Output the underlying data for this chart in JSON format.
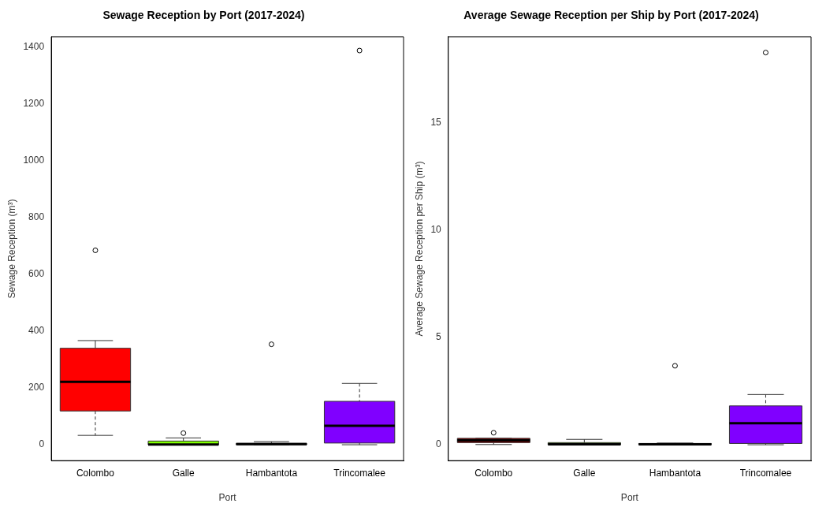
{
  "chart_data": [
    {
      "type": "box",
      "title": "Sewage Reception by Port (2017-2024)",
      "xlabel": "Port",
      "ylabel": "Sewage Reception (m³)",
      "categories": [
        "Colombo",
        "Galle",
        "Hambantota",
        "Trincomalee"
      ],
      "colors": [
        "#ff0000",
        "#7fff00",
        "#000000",
        "#8000ff"
      ],
      "boxes": [
        {
          "low": 33,
          "q1": 119,
          "median": 222,
          "q3": 340,
          "high": 367,
          "outliers": [
            685
          ]
        },
        {
          "low": 0,
          "q1": 0,
          "median": 1,
          "q3": 13,
          "high": 24,
          "outliers": [
            41
          ]
        },
        {
          "low": 0,
          "q1": 0,
          "median": 2,
          "q3": 5,
          "high": 11,
          "outliers": [
            354
          ]
        },
        {
          "low": 0,
          "q1": 6,
          "median": 67,
          "q3": 153,
          "high": 216,
          "outliers": [
            1389
          ]
        }
      ],
      "ylim": [
        -56,
        1437
      ],
      "yticks": [
        0,
        200,
        400,
        600,
        800,
        1000,
        1200,
        1400
      ],
      "grid": false,
      "legend": false
    },
    {
      "type": "box",
      "title": "Average Sewage Reception per Ship by Port (2017-2024)",
      "xlabel": "Port",
      "ylabel": "Average Sewage Reception per Ship (m³)",
      "categories": [
        "Colombo",
        "Galle",
        "Hambantota",
        "Trincomalee"
      ],
      "colors": [
        "#8b0000",
        "#7fff00",
        "#000000",
        "#8000ff"
      ],
      "boxes": [
        {
          "low": 0.01,
          "q1": 0.1,
          "median": 0.2,
          "q3": 0.3,
          "high": 0.3,
          "outliers": [
            0.56
          ]
        },
        {
          "low": 0,
          "q1": 0,
          "median": 0.02,
          "q3": 0.1,
          "high": 0.25
        },
        {
          "low": 0,
          "q1": 0,
          "median": 0.02,
          "q3": 0.06,
          "high": 0.08,
          "outliers": [
            3.68
          ]
        },
        {
          "low": 0,
          "q1": 0.06,
          "median": 1.0,
          "q3": 1.81,
          "high": 2.34,
          "outliers": [
            18.27
          ]
        }
      ],
      "ylim": [
        -0.74,
        19
      ],
      "yticks": [
        0,
        5,
        10,
        15
      ],
      "grid": false,
      "legend": false
    }
  ]
}
